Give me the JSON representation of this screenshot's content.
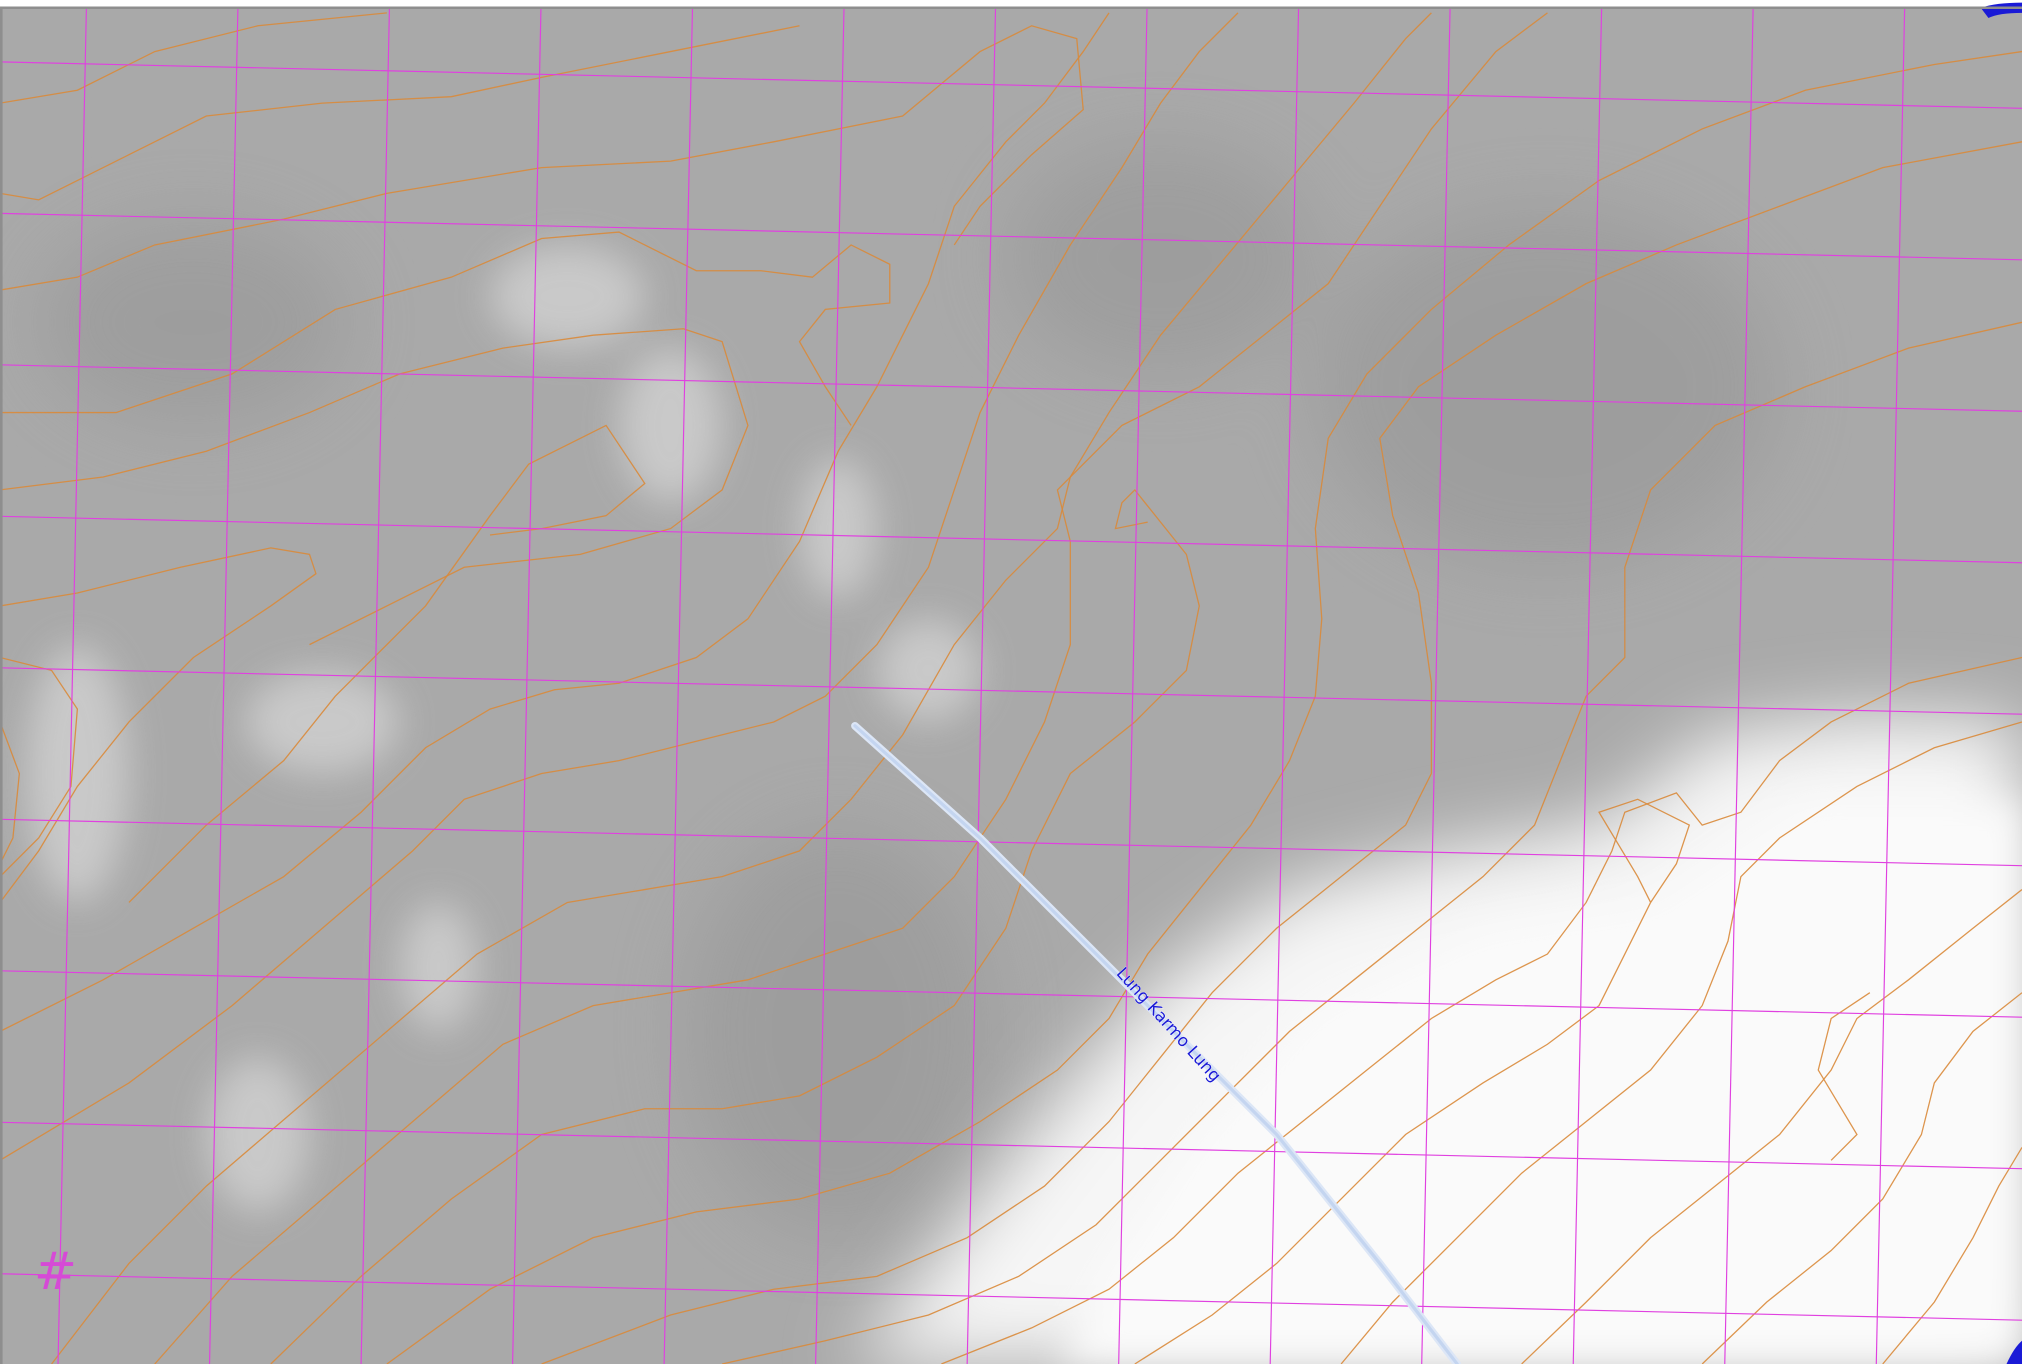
{
  "map": {
    "labels": [
      {
        "text": "Lung Karmo Lung"
      },
      {
        "text": "#"
      }
    ]
  }
}
